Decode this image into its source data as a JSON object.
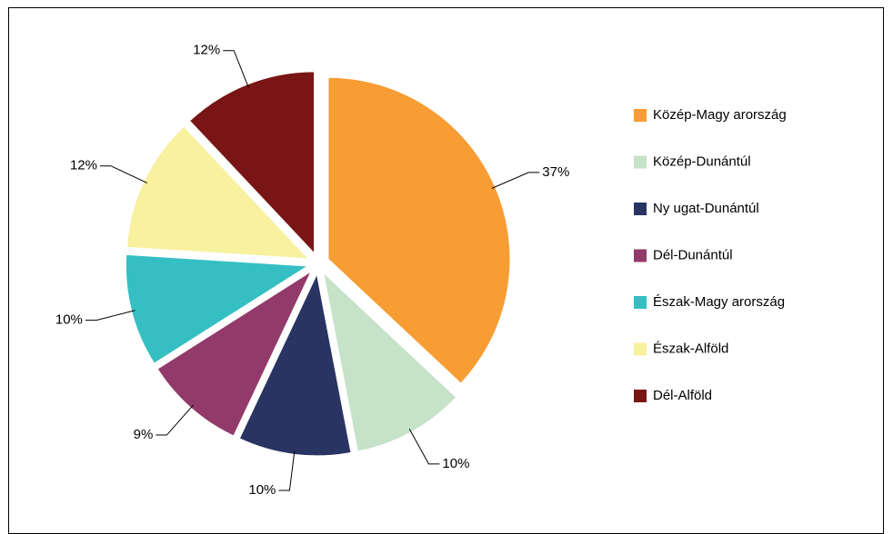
{
  "chart_data": {
    "type": "pie",
    "categories": [
      "Közép-Magy arország",
      "Közép-Dunántúl",
      "Ny ugat-Dunántúl",
      "Dél-Dunántúl",
      "Észak-Magy arország",
      "Észak-Alföld",
      "Dél-Alföld"
    ],
    "values": [
      37,
      10,
      10,
      9,
      10,
      12,
      12
    ],
    "value_labels": [
      "37%",
      "10%",
      "10%",
      "9%",
      "10%",
      "12%",
      "12%"
    ],
    "colors": [
      "#f89c34",
      "#c6e2c8",
      "#293462",
      "#923a6a",
      "#35bfc2",
      "#f7f1a0",
      "#7a1515"
    ],
    "legend": "right"
  }
}
